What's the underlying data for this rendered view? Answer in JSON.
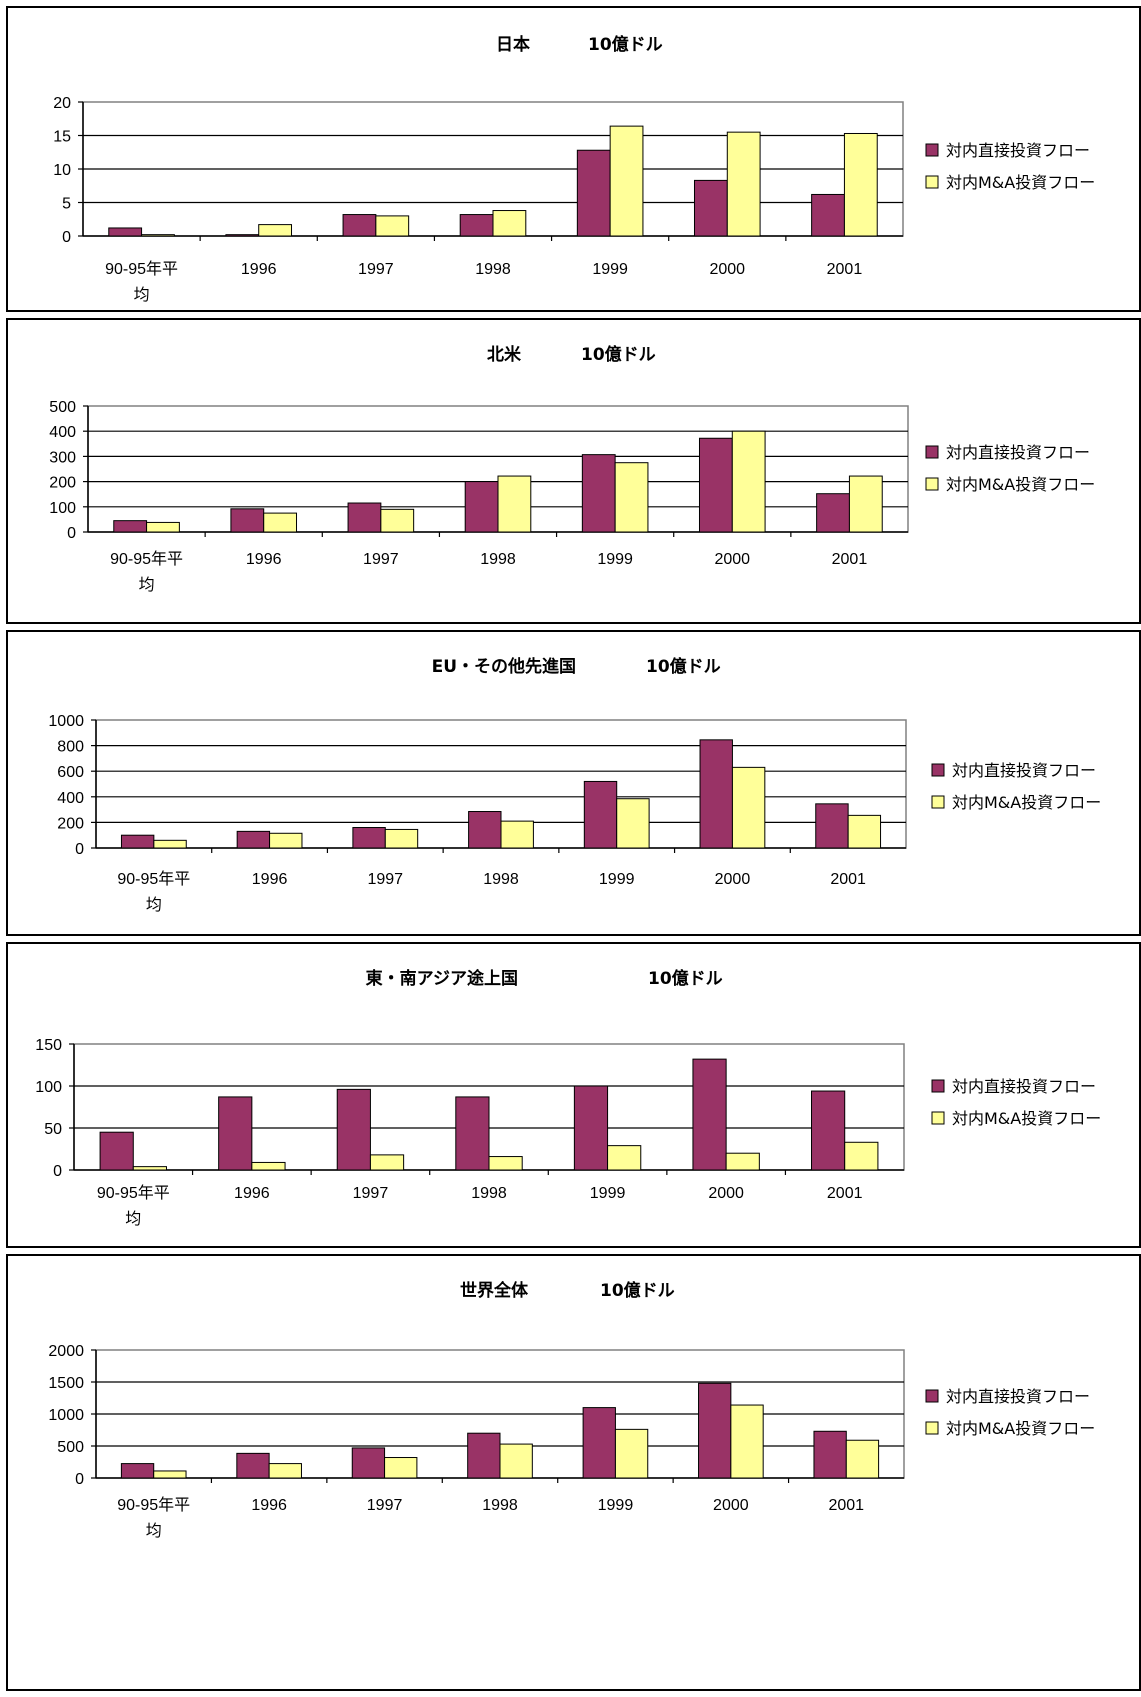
{
  "legend": {
    "series1": "対内直接投資フロー",
    "series2": "対内M&A投資フロー"
  },
  "colors": {
    "series1": "#993366",
    "series2": "#FFFF99"
  },
  "chart_data": [
    {
      "type": "bar",
      "title": "日本",
      "unit": "10億ドル",
      "categories": [
        "90-95年平均",
        "1996",
        "1997",
        "1998",
        "1999",
        "2000",
        "2001"
      ],
      "series": [
        {
          "name": "対内直接投資フロー",
          "values": [
            1.2,
            0.2,
            3.2,
            3.2,
            12.8,
            8.3,
            6.2
          ]
        },
        {
          "name": "対内M&A投資フロー",
          "values": [
            0.2,
            1.7,
            3.0,
            3.8,
            16.4,
            15.5,
            15.3
          ]
        }
      ],
      "ylim": [
        0,
        20
      ],
      "yticks": [
        0,
        5,
        10,
        15,
        20
      ],
      "grid": true,
      "legend_position": "right"
    },
    {
      "type": "bar",
      "title": "北米",
      "unit": "10億ドル",
      "categories": [
        "90-95年平均",
        "1996",
        "1997",
        "1998",
        "1999",
        "2000",
        "2001"
      ],
      "series": [
        {
          "name": "対内直接投資フロー",
          "values": [
            45,
            92,
            115,
            200,
            307,
            372,
            152
          ]
        },
        {
          "name": "対内M&A投資フロー",
          "values": [
            38,
            75,
            90,
            222,
            275,
            400,
            222
          ]
        }
      ],
      "ylim": [
        0,
        500
      ],
      "yticks": [
        0,
        100,
        200,
        300,
        400,
        500
      ],
      "grid": true,
      "legend_position": "right"
    },
    {
      "type": "bar",
      "title": "EU・その他先進国",
      "unit": "10億ドル",
      "categories": [
        "90-95年平均",
        "1996",
        "1997",
        "1998",
        "1999",
        "2000",
        "2001"
      ],
      "series": [
        {
          "name": "対内直接投資フロー",
          "values": [
            100,
            130,
            160,
            285,
            520,
            845,
            345
          ]
        },
        {
          "name": "対内M&A投資フロー",
          "values": [
            60,
            115,
            145,
            210,
            385,
            630,
            255
          ]
        }
      ],
      "ylim": [
        0,
        1000
      ],
      "yticks": [
        0,
        200,
        400,
        600,
        800,
        1000
      ],
      "grid": true,
      "legend_position": "right"
    },
    {
      "type": "bar",
      "title": "東・南アジア途上国",
      "unit": "10億ドル",
      "categories": [
        "90-95年平均",
        "1996",
        "1997",
        "1998",
        "1999",
        "2000",
        "2001"
      ],
      "series": [
        {
          "name": "対内直接投資フロー",
          "values": [
            45,
            87,
            96,
            87,
            100,
            132,
            94
          ]
        },
        {
          "name": "対内M&A投資フロー",
          "values": [
            4,
            9,
            18,
            16,
            29,
            20,
            33
          ]
        }
      ],
      "ylim": [
        0,
        150
      ],
      "yticks": [
        0,
        50,
        100,
        150
      ],
      "grid": true,
      "legend_position": "right"
    },
    {
      "type": "bar",
      "title": "世界全体",
      "unit": "10億ドル",
      "categories": [
        "90-95年平均",
        "1996",
        "1997",
        "1998",
        "1999",
        "2000",
        "2001"
      ],
      "series": [
        {
          "name": "対内直接投資フロー",
          "values": [
            225,
            385,
            470,
            700,
            1100,
            1480,
            730
          ]
        },
        {
          "name": "対内M&A投資フロー",
          "values": [
            110,
            225,
            320,
            530,
            760,
            1140,
            590
          ]
        }
      ],
      "ylim": [
        0,
        2000
      ],
      "yticks": [
        0,
        500,
        1000,
        1500,
        2000
      ],
      "grid": true,
      "legend_position": "right"
    }
  ]
}
